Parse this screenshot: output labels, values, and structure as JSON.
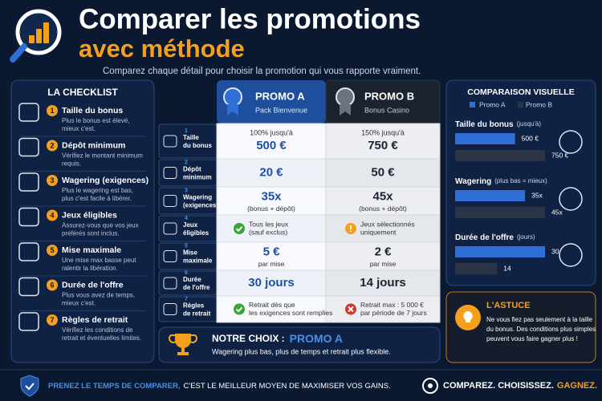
{
  "header": {
    "title_line1": "Comparer les promotions",
    "title_line2": "avec méthode",
    "subtitle": "Comparez chaque détail pour choisir la promotion qui vous rapporte vraiment."
  },
  "checklist": {
    "title": "LA CHECKLIST",
    "items": [
      {
        "number": "1",
        "title": "Taille du bonus",
        "text": [
          "Plus le bonus est élevé,",
          "mieux c'est."
        ]
      },
      {
        "number": "2",
        "title": "Dépôt minimum",
        "text": [
          "Vérifiez le montant minimum",
          "requis."
        ]
      },
      {
        "number": "3",
        "title": "Wagering (exigences)",
        "text": [
          "Plus le wagering est bas,",
          "plus c'est facile à libérer."
        ]
      },
      {
        "number": "4",
        "title": "Jeux éligibles",
        "text": [
          "Assurez-vous que vos jeux",
          "préférés sont inclus."
        ]
      },
      {
        "number": "5",
        "title": "Mise maximale",
        "text": [
          "Une mise max basse peut",
          "ralentir la libération."
        ]
      },
      {
        "number": "6",
        "title": "Durée de l'offre",
        "text": [
          "Plus vous avez de temps,",
          "mieux c'est."
        ]
      },
      {
        "number": "7",
        "title": "Règles de retrait",
        "text": [
          "Vérifiez les conditions de",
          "retrait et éventuelles limites."
        ]
      }
    ]
  },
  "table": {
    "promo_a": {
      "name": "PROMO A",
      "subtitle": "Pack Bienvenue"
    },
    "promo_b": {
      "name": "PROMO B",
      "subtitle": "Bonus Casino"
    },
    "rows": [
      {
        "number": "1",
        "label": [
          "Taille",
          "du bonus"
        ],
        "a": {
          "top": "100% jusqu'à",
          "big": "500 €"
        },
        "b": {
          "top": "150% jusqu'à",
          "big": "750 €"
        }
      },
      {
        "number": "2",
        "label": [
          "Dépôt",
          "minimum"
        ],
        "a": {
          "big": "20 €"
        },
        "b": {
          "big": "50 €"
        }
      },
      {
        "number": "3",
        "label": [
          "Wagering",
          "(exigences)"
        ],
        "a": {
          "big": "35x",
          "sub": "(bonus + dépôt)"
        },
        "b": {
          "big": "45x",
          "sub": "(bonus + dépôt)"
        }
      },
      {
        "number": "4",
        "label": [
          "Jeux",
          "éligibles"
        ],
        "a": {
          "text": [
            "Tous les jeux",
            "(sauf exclus)"
          ]
        },
        "b": {
          "text": [
            "Jeux sélectionnés",
            "uniquement"
          ]
        }
      },
      {
        "number": "5",
        "label": [
          "Mise",
          "maximale"
        ],
        "a": {
          "big": "5 €",
          "sub": "par mise"
        },
        "b": {
          "big": "2 €",
          "sub": "par mise"
        }
      },
      {
        "number": "6",
        "label": [
          "Durée",
          "de l'offre"
        ],
        "a": {
          "big": "30 jours"
        },
        "b": {
          "big": "14 jours"
        }
      },
      {
        "number": "7",
        "label": [
          "Règles",
          "de retrait"
        ],
        "a": {
          "text": [
            "Retrait dès que",
            "les exigences sont remplies"
          ]
        },
        "b": {
          "text": [
            "Retrait max : 5 000 €",
            "par période de 7 jours"
          ]
        }
      }
    ]
  },
  "choice": {
    "label": "NOTRE CHOIX :",
    "value": "PROMO A",
    "text": "Wagering plus bas, plus de temps et retrait plus flexible."
  },
  "visual": {
    "title": "COMPARAISON VISUELLE",
    "legend": [
      "Promo A",
      "Promo B"
    ],
    "colors": [
      "#2f6fd6",
      "#2a3445"
    ],
    "groups": [
      {
        "label": "Taille du bonus",
        "hint": "(jusqu'à)",
        "values": [
          500,
          750
        ],
        "value_labels": [
          "500 €",
          "750 €"
        ]
      },
      {
        "label": "Wagering",
        "hint": "(plus bas = mieux)",
        "values": [
          35,
          45
        ],
        "value_labels": [
          "35x",
          "45x"
        ]
      },
      {
        "label": "Durée de l'offre",
        "hint": "(jours)",
        "values": [
          30,
          14
        ]
      }
    ]
  },
  "tip": {
    "title": "L'ASTUCE",
    "text": [
      "Ne vous fiez pas seulement à la taille",
      "du bonus. Des conditions plus simples",
      "peuvent vous faire gagner plus !"
    ]
  },
  "footer": {
    "left_highlight": "PRENEZ LE TEMPS DE COMPARER,",
    "left_rest": "C'EST LE MEILLEUR MOYEN DE MAXIMISER VOS GAINS.",
    "right_a": "COMPAREZ. CHOISISSEZ.",
    "right_b": "GAGNEZ."
  }
}
